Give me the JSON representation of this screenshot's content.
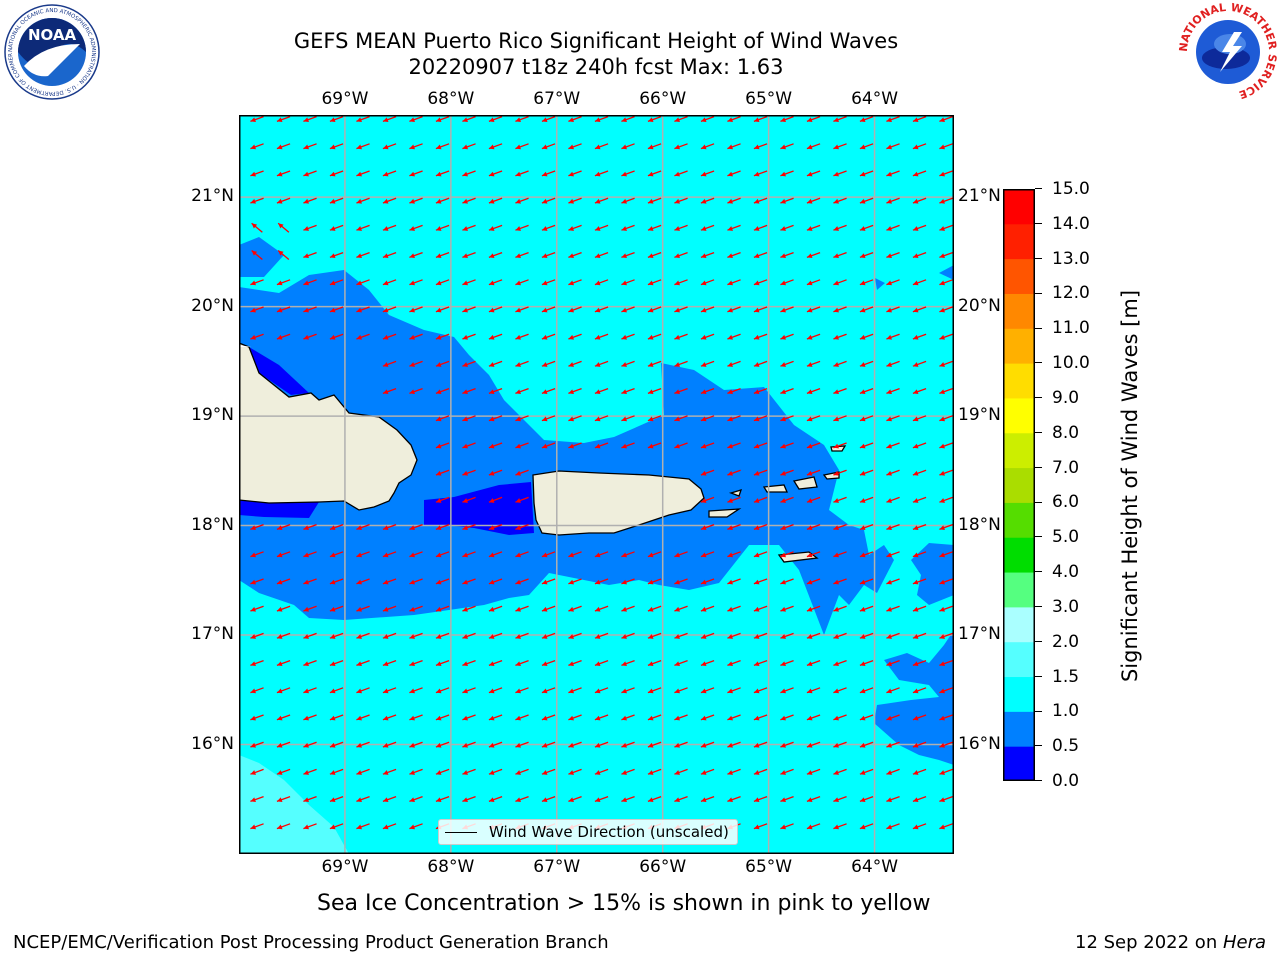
{
  "title": {
    "line1": "GEFS MEAN Puerto Rico Significant Height of Wind Waves",
    "line2": "20220907 t18z 240h fcst   Max: 1.63"
  },
  "logos": {
    "left": {
      "text": "NOAA",
      "ring_text": "NATIONAL OCEANIC AND ATMOSPHERIC ADMINISTRATION · U.S. DEPARTMENT OF COMMERCE",
      "icon": "noaa-logo"
    },
    "right": {
      "ring_text": "NATIONAL WEATHER SERVICE",
      "icon": "nws-logo"
    }
  },
  "map": {
    "lon_labels": [
      "69°W",
      "68°W",
      "67°W",
      "66°W",
      "65°W",
      "64°W"
    ],
    "lat_labels": [
      "21°N",
      "20°N",
      "19°N",
      "18°N",
      "17°N",
      "16°N"
    ],
    "lon_values": [
      -69,
      -68,
      -67,
      -66,
      -65,
      -64
    ],
    "lat_values": [
      21,
      20,
      19,
      18,
      17,
      16
    ],
    "extent": {
      "lon": [
        -70.0,
        -63.25
      ],
      "lat": [
        15.0,
        21.75
      ]
    },
    "legend_label": "Wind Wave Direction (unscaled)",
    "colors": {
      "ocean_high": "#00ffff",
      "ocean_mid": "#0080ff",
      "ocean_low": "#0000ff",
      "ocean_max": "#55ffff",
      "land": "#efeedc",
      "arrow": "#ff0000",
      "grid": "#b0b0b0"
    }
  },
  "colorbar": {
    "label": "Significant Height of Wind Waves [m]",
    "ticks": [
      "15.0",
      "14.0",
      "13.0",
      "12.0",
      "11.0",
      "10.0",
      "9.0",
      "8.0",
      "7.0",
      "6.0",
      "5.0",
      "4.0",
      "3.0",
      "2.0",
      "1.5",
      "1.0",
      "0.5",
      "0.0"
    ],
    "colors_bottom_to_top": [
      "#0000ff",
      "#0080ff",
      "#00ffff",
      "#55ffff",
      "#aaffff",
      "#55ff80",
      "#00dd00",
      "#55dd00",
      "#aadd00",
      "#ccee00",
      "#ffff00",
      "#ffdd00",
      "#ffb000",
      "#ff8800",
      "#ff5500",
      "#ff2000",
      "#ff0000"
    ]
  },
  "notes": {
    "sea_ice": "Sea Ice Concentration > 15% is shown in pink to yellow"
  },
  "footer": {
    "left": "NCEP/EMC/Verification Post Processing Product Generation Branch",
    "right_date": "12 Sep 2022 on ",
    "right_machine": "Hera"
  }
}
